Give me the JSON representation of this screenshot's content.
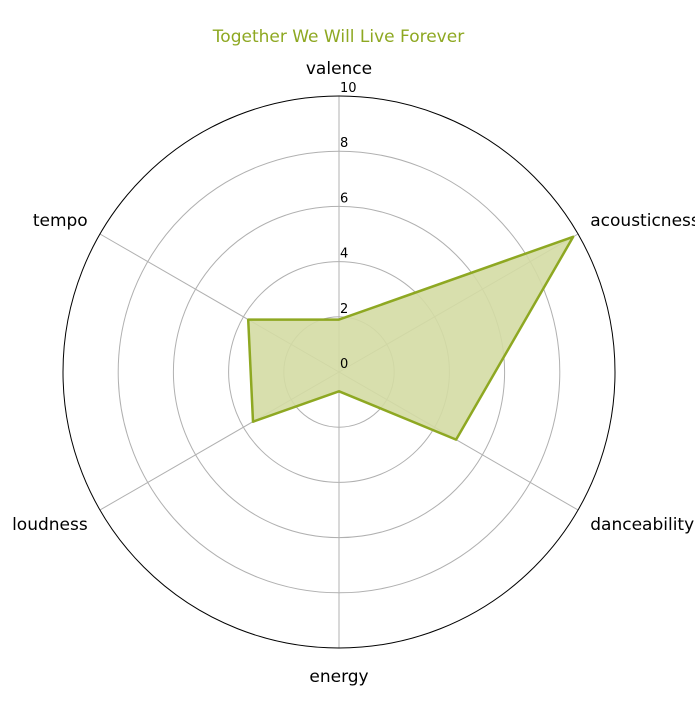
{
  "chart_data": {
    "type": "radar",
    "title": "Together We Will Live Forever",
    "axes": [
      "valence",
      "acousticness",
      "danceability",
      "energy",
      "loudness",
      "tempo"
    ],
    "series": [
      {
        "values": [
          1.9,
          9.8,
          4.9,
          0.7,
          3.6,
          3.8
        ]
      }
    ],
    "rlim": [
      0,
      10
    ],
    "r_ticks": [
      "0",
      "2",
      "4",
      "6",
      "8",
      "10"
    ],
    "colors": {
      "line": "#8ea822",
      "fill": "#d4dca4",
      "grid": "#b0b0b0",
      "frame": "#000000"
    }
  }
}
